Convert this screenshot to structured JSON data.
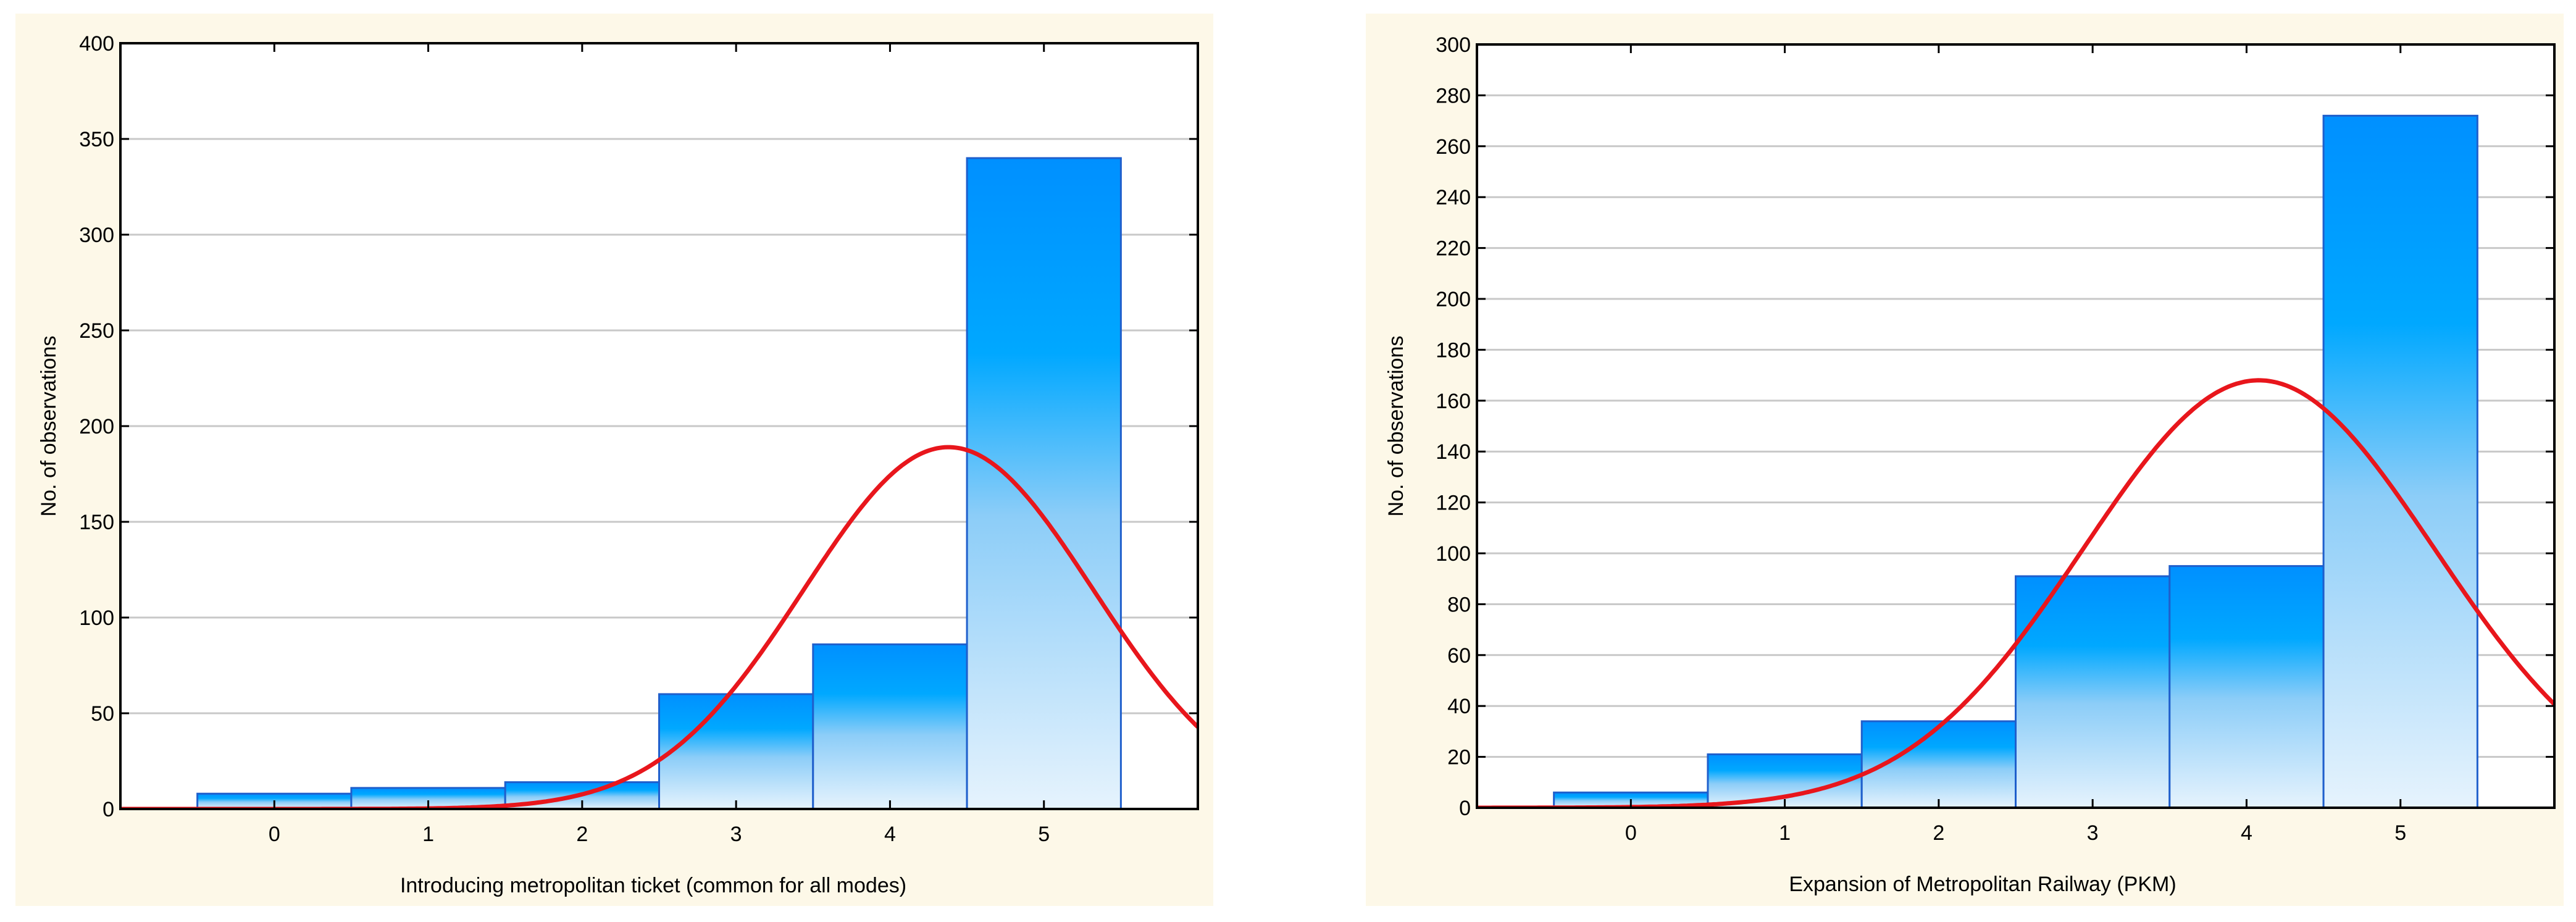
{
  "colors": {
    "panel_background": "#fdf8e8",
    "plot_background": "#ffffff",
    "bar_top": "#0090ff",
    "bar_mid": "#00a8ff",
    "bar_bottom": "#e6f3fd",
    "bar_stroke": "#1f5fcc",
    "curve": "#e8161c",
    "grid": "#c8c8c8"
  },
  "chart_data": [
    {
      "type": "bar",
      "title": "",
      "xlabel": "Introducing metropolitan ticket (common for all modes)",
      "ylabel": "No. of observations",
      "categories": [
        "0",
        "1",
        "2",
        "3",
        "4",
        "5"
      ],
      "values": [
        8,
        11,
        14,
        60,
        86,
        340
      ],
      "ylim": [
        0,
        400
      ],
      "yticks": [
        "0",
        "50",
        "100",
        "150",
        "200",
        "250",
        "300",
        "350",
        "400"
      ],
      "xlim": [
        -1,
        6
      ],
      "grid": true,
      "overlay": {
        "type": "normal-curve",
        "mean": 4.38,
        "sd": 0.94,
        "peak": 189
      }
    },
    {
      "type": "bar",
      "title": "",
      "xlabel": "Expansion of Metropolitan Railway (PKM)",
      "ylabel": "No. of observations",
      "categories": [
        "0",
        "1",
        "2",
        "3",
        "4",
        "5"
      ],
      "values": [
        6,
        21,
        34,
        91,
        95,
        272
      ],
      "ylim": [
        0,
        300
      ],
      "yticks": [
        "0",
        "20",
        "40",
        "60",
        "80",
        "100",
        "120",
        "140",
        "160",
        "180",
        "200",
        "220",
        "240",
        "260",
        "280",
        "300"
      ],
      "xlim": [
        -1,
        6
      ],
      "grid": true,
      "overlay": {
        "type": "normal-curve",
        "mean": 4.08,
        "sd": 1.14,
        "peak": 168
      }
    }
  ]
}
